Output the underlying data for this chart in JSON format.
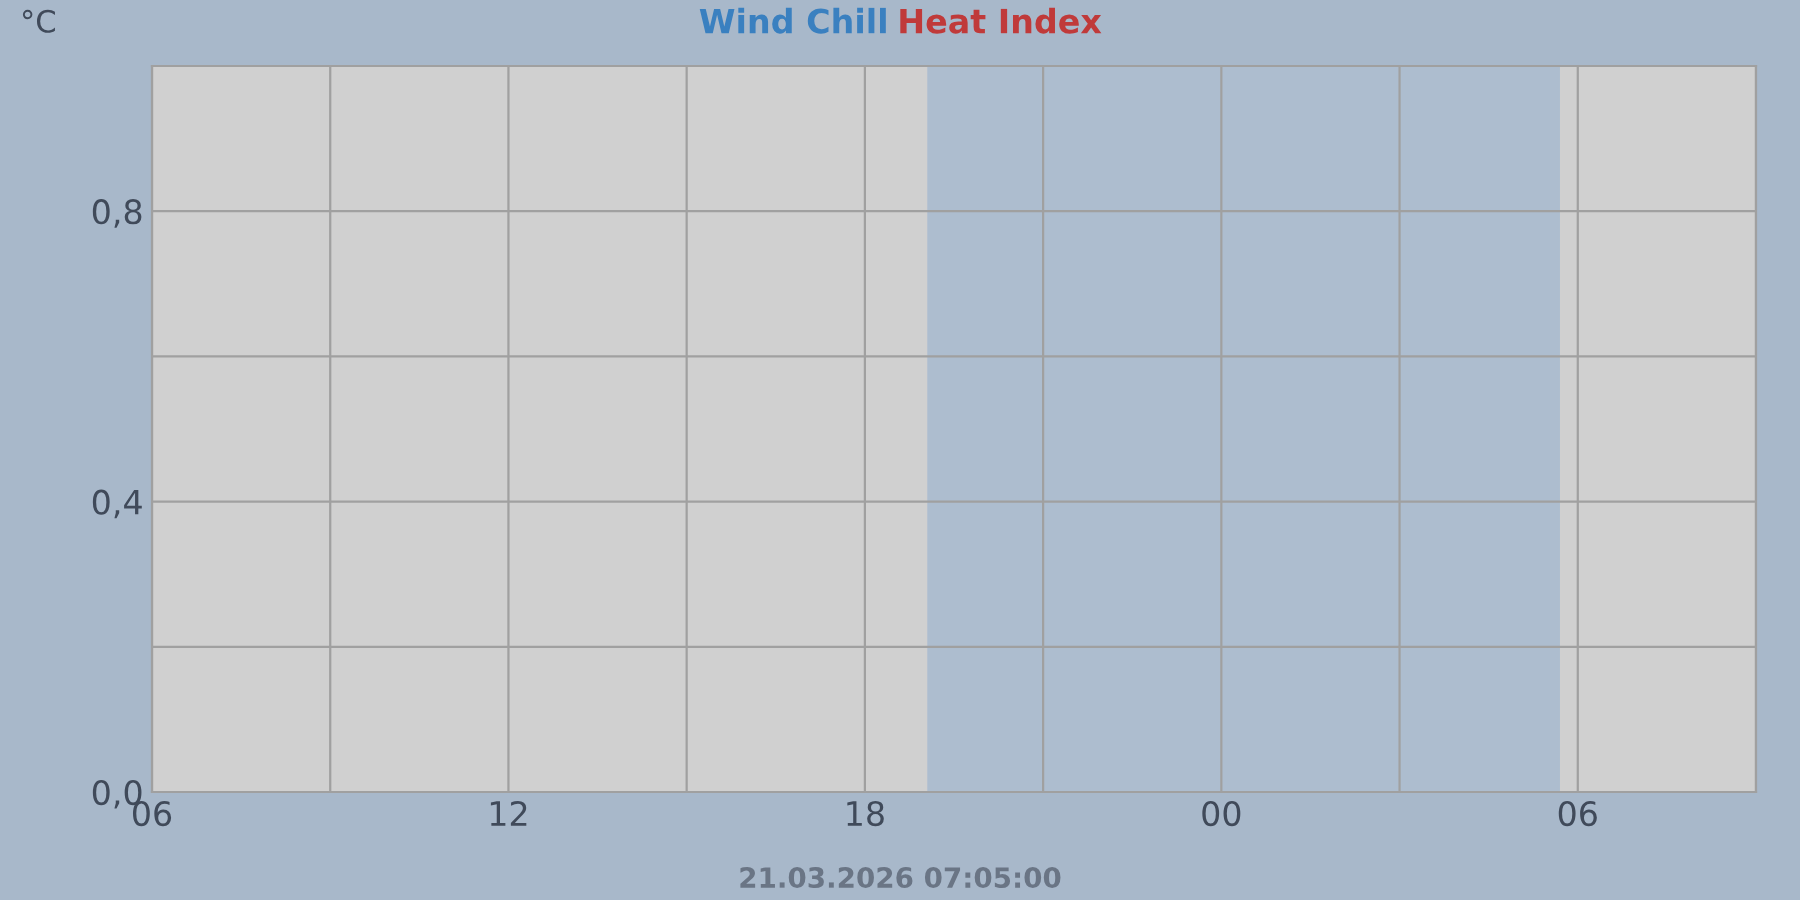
{
  "chart_data": {
    "type": "line",
    "series": [
      {
        "name": "Wind Chill",
        "color": "#3a80c0",
        "values": [
          null,
          null,
          null,
          null,
          null,
          null,
          null,
          null,
          null,
          null
        ]
      },
      {
        "name": "Heat Index",
        "color": "#c03a3a",
        "values": [
          null,
          null,
          null,
          null,
          null,
          null,
          null,
          null,
          null,
          null
        ]
      }
    ],
    "ylabel": "°C",
    "categories": [
      "06",
      null,
      "12",
      null,
      "18",
      null,
      "00",
      null,
      "06",
      null
    ],
    "ylim": [
      0,
      1.0
    ],
    "yticks": [
      {
        "value": 0,
        "label": "0,0"
      },
      {
        "value": 0.2,
        "label": null
      },
      {
        "value": 0.4,
        "label": "0,4"
      },
      {
        "value": 0.6,
        "label": null
      },
      {
        "value": 0.8,
        "label": "0,8"
      }
    ],
    "grid": true,
    "annotations": [
      "21.03.2026 07:05:00"
    ]
  }
}
